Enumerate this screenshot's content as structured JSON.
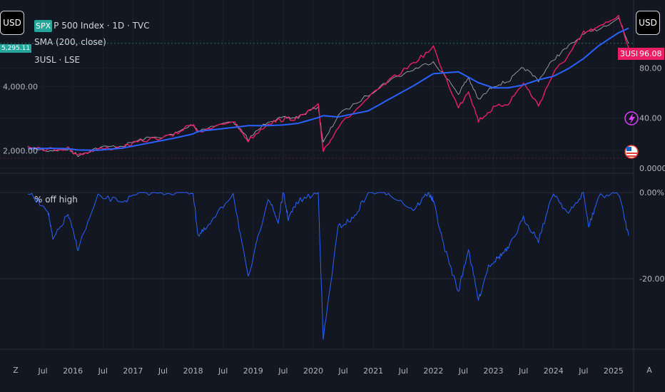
{
  "currency_label": "USD",
  "legend": {
    "symbol_badge": "SPX",
    "main_series": "P 500 Index · 1D · TVC",
    "sma": "SMA (200, close)",
    "secondary": "3USL · LSE",
    "indicator": "% off high"
  },
  "price_tags": {
    "spx_last": "5,295.11",
    "usl_symbol": "3USL",
    "usl_last": "96.08"
  },
  "colors": {
    "background": "#131722",
    "spx_line": "#b2b5be",
    "sma_line": "#2962ff",
    "usl_line": "#e91e63",
    "offhigh_line": "#2962ff",
    "spx_badge": "#26a69a",
    "usl_badge": "#e91e63"
  },
  "icons": {
    "flash_icon": "flash-icon",
    "flag_icon": "us-flag-icon"
  },
  "bottom_controls": {
    "zoom_label": "Z",
    "auto_label": "A"
  },
  "chart_data": [
    {
      "type": "line",
      "pane": "price",
      "x": [
        "2015-04",
        "2015-08",
        "2015-12",
        "2016-02",
        "2016-06",
        "2016-11",
        "2017-03",
        "2017-09",
        "2018-01",
        "2018-02",
        "2018-09",
        "2018-12",
        "2019-04",
        "2019-07",
        "2019-10",
        "2020-02",
        "2020-03",
        "2020-06",
        "2020-12",
        "2021-04",
        "2021-09",
        "2022-01",
        "2022-06",
        "2022-08",
        "2022-10",
        "2023-01",
        "2023-04",
        "2023-07",
        "2023-10",
        "2024-01",
        "2024-04",
        "2024-07",
        "2024-10",
        "2025-02",
        "2025-04"
      ],
      "series": [
        {
          "name": "SPX",
          "axis": "left",
          "values": [
            2090,
            2000,
            2040,
            1860,
            2090,
            2150,
            2360,
            2490,
            2820,
            2620,
            2920,
            2350,
            2930,
            3010,
            3040,
            3380,
            2240,
            3100,
            3740,
            4180,
            4530,
            4790,
            3780,
            4280,
            3580,
            4020,
            4170,
            4590,
            4200,
            4850,
            5250,
            5620,
            5800,
            6130,
            5350
          ]
        },
        {
          "name": "SMA (200, close)",
          "axis": "left",
          "values": [
            2060,
            2070,
            2060,
            2020,
            2010,
            2080,
            2200,
            2380,
            2520,
            2600,
            2720,
            2780,
            2780,
            2800,
            2850,
            3030,
            3090,
            3050,
            3240,
            3590,
            4020,
            4400,
            4460,
            4290,
            4120,
            3960,
            3960,
            4050,
            4210,
            4320,
            4560,
            4870,
            5270,
            5680,
            5820
          ]
        },
        {
          "name": "3USL",
          "axis": "right",
          "values": [
            18,
            15,
            16,
            11,
            15,
            17,
            22,
            26,
            36,
            28,
            38,
            22,
            36,
            39,
            40,
            50,
            14,
            33,
            56,
            69,
            84,
            96,
            48,
            62,
            38,
            48,
            52,
            68,
            50,
            76,
            90,
            108,
            112,
            122,
            96
          ]
        }
      ],
      "y_left_ticks": [
        "2,000.00",
        "4,000.00"
      ],
      "y_right_ticks": [
        "0.0000",
        "40.00",
        "80.00"
      ],
      "ylim_left": [
        1450,
        6300
      ],
      "ylim_right": [
        0,
        124
      ],
      "log_scale": false,
      "grid": true
    },
    {
      "type": "line",
      "pane": "indicator",
      "x": [
        "2015-04",
        "2015-08",
        "2015-09",
        "2015-12",
        "2016-02",
        "2016-06",
        "2016-11",
        "2017-03",
        "2017-09",
        "2018-01",
        "2018-02",
        "2018-04",
        "2018-09",
        "2018-12",
        "2019-04",
        "2019-06",
        "2019-07",
        "2019-08",
        "2019-10",
        "2020-02",
        "2020-03",
        "2020-06",
        "2020-09",
        "2020-12",
        "2021-04",
        "2021-09",
        "2021-12",
        "2022-01",
        "2022-03",
        "2022-06",
        "2022-08",
        "2022-10",
        "2022-12",
        "2023-02",
        "2023-04",
        "2023-07",
        "2023-10",
        "2024-01",
        "2024-04",
        "2024-07",
        "2024-08",
        "2024-10",
        "2025-02",
        "2025-04"
      ],
      "series": [
        {
          "name": "% off high",
          "values": [
            0,
            -4,
            -11,
            -5,
            -13,
            -1,
            -2,
            0,
            0,
            0,
            -10,
            -8,
            0,
            -20,
            -1,
            -7,
            0,
            -6,
            -2,
            0,
            -34,
            -8,
            -6,
            0,
            0,
            -4,
            0,
            -2,
            -12,
            -23,
            -13,
            -25,
            -17,
            -15,
            -13,
            -6,
            -11,
            0,
            -5,
            0,
            -8,
            -1,
            0,
            -10
          ]
        }
      ],
      "y_ticks": [
        "0.00%",
        "-20.00%"
      ],
      "ylim": [
        -36,
        2
      ],
      "grid": true
    }
  ],
  "time_axis": [
    "Jul",
    "2016",
    "Jul",
    "2017",
    "Jul",
    "2018",
    "Jul",
    "2019",
    "Jul",
    "2020",
    "Jul",
    "2021",
    "Jul",
    "2022",
    "Jul",
    "2023",
    "Jul",
    "2024",
    "Jul",
    "2025"
  ]
}
